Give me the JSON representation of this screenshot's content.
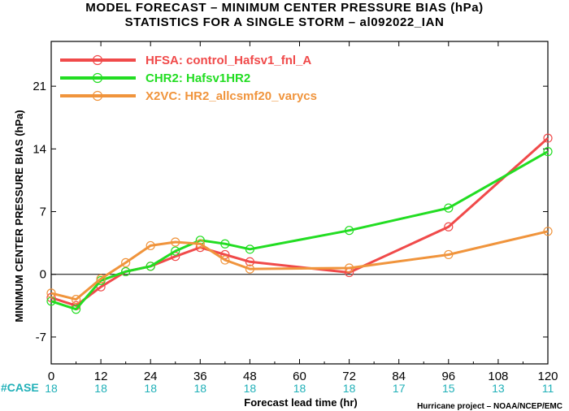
{
  "header": {
    "title": "MODEL FORECAST – MINIMUM CENTER PRESSURE BIAS (hPa)",
    "subtitle": "STATISTICS FOR A SINGLE STORM – al092022_IAN"
  },
  "credit": "Hurricane project – NOAA/NCEP/EMC",
  "case_label": "#CASE",
  "chart_data": {
    "type": "line",
    "xlabel": "Forecast lead time (hr)",
    "ylabel": "MINIMUM CENTER PRESSURE BIAS (hPa)",
    "xlim": [
      0,
      120
    ],
    "ylim": [
      -10,
      26
    ],
    "xticks": [
      0,
      12,
      24,
      36,
      48,
      60,
      72,
      84,
      96,
      108,
      120
    ],
    "yticks": [
      -7,
      0,
      7,
      14,
      21
    ],
    "grid": false,
    "zero_line": true,
    "legend_position": "top-left",
    "cases": [
      18,
      18,
      18,
      18,
      18,
      18,
      18,
      17,
      15,
      13,
      11
    ],
    "series": [
      {
        "name": "HFSA:  control_Hafsv1_fnl_A",
        "color": "#f04a4a",
        "x": [
          0,
          6,
          12,
          18,
          24,
          30,
          36,
          42,
          48,
          72,
          96,
          120
        ],
        "y": [
          -2.6,
          -3.5,
          -1.4,
          0.3,
          0.9,
          2.0,
          3.0,
          2.2,
          1.4,
          0.2,
          5.3,
          15.2
        ]
      },
      {
        "name": "CHR2:  Hafsv1HR2",
        "color": "#22dd22",
        "x": [
          0,
          6,
          12,
          18,
          24,
          30,
          36,
          42,
          48,
          72,
          96,
          120
        ],
        "y": [
          -3.0,
          -3.9,
          -0.7,
          0.3,
          0.9,
          2.6,
          3.8,
          3.4,
          2.8,
          4.9,
          7.4,
          13.7
        ]
      },
      {
        "name": "X2VC:  HR2_allcsmf20_varycs",
        "color": "#f0943c",
        "x": [
          0,
          6,
          12,
          18,
          24,
          30,
          36,
          42,
          48,
          72,
          96,
          120
        ],
        "y": [
          -2.1,
          -2.8,
          -0.5,
          1.3,
          3.2,
          3.6,
          3.4,
          1.6,
          0.6,
          0.7,
          2.2,
          4.8
        ]
      }
    ]
  }
}
